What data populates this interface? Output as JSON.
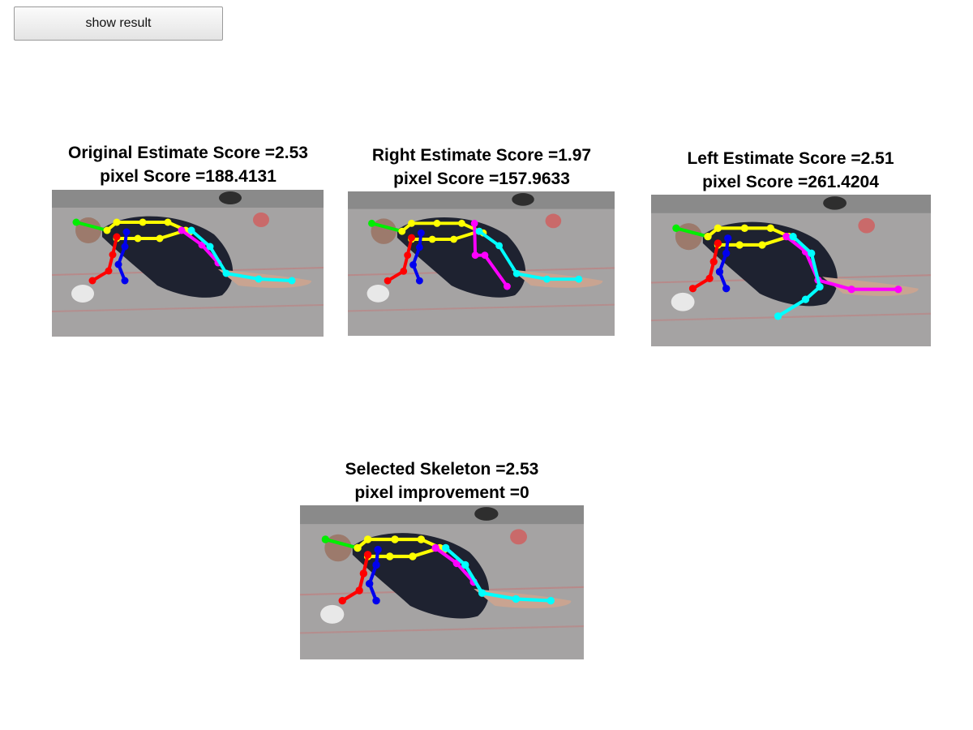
{
  "button": {
    "label": "show result"
  },
  "panels": [
    {
      "line1": "Original Estimate Score =2.53",
      "line2": "pixel Score =188.4131",
      "variant": "original"
    },
    {
      "line1": "Right Estimate Score =1.97",
      "line2": "pixel Score =157.9633",
      "variant": "right"
    },
    {
      "line1": "Left Estimate Score =2.51",
      "line2": "pixel Score =261.4204",
      "variant": "left"
    },
    {
      "line1": "Selected Skeleton =2.53",
      "line2": "pixel improvement =0",
      "variant": "original"
    }
  ],
  "limb_colors": {
    "head": "#00ee00",
    "torso": "#ffff00",
    "right_arm": "#ff0000",
    "left_arm": "#0000ee",
    "right_leg": "#ff00ff",
    "left_leg": "#00ffff"
  }
}
